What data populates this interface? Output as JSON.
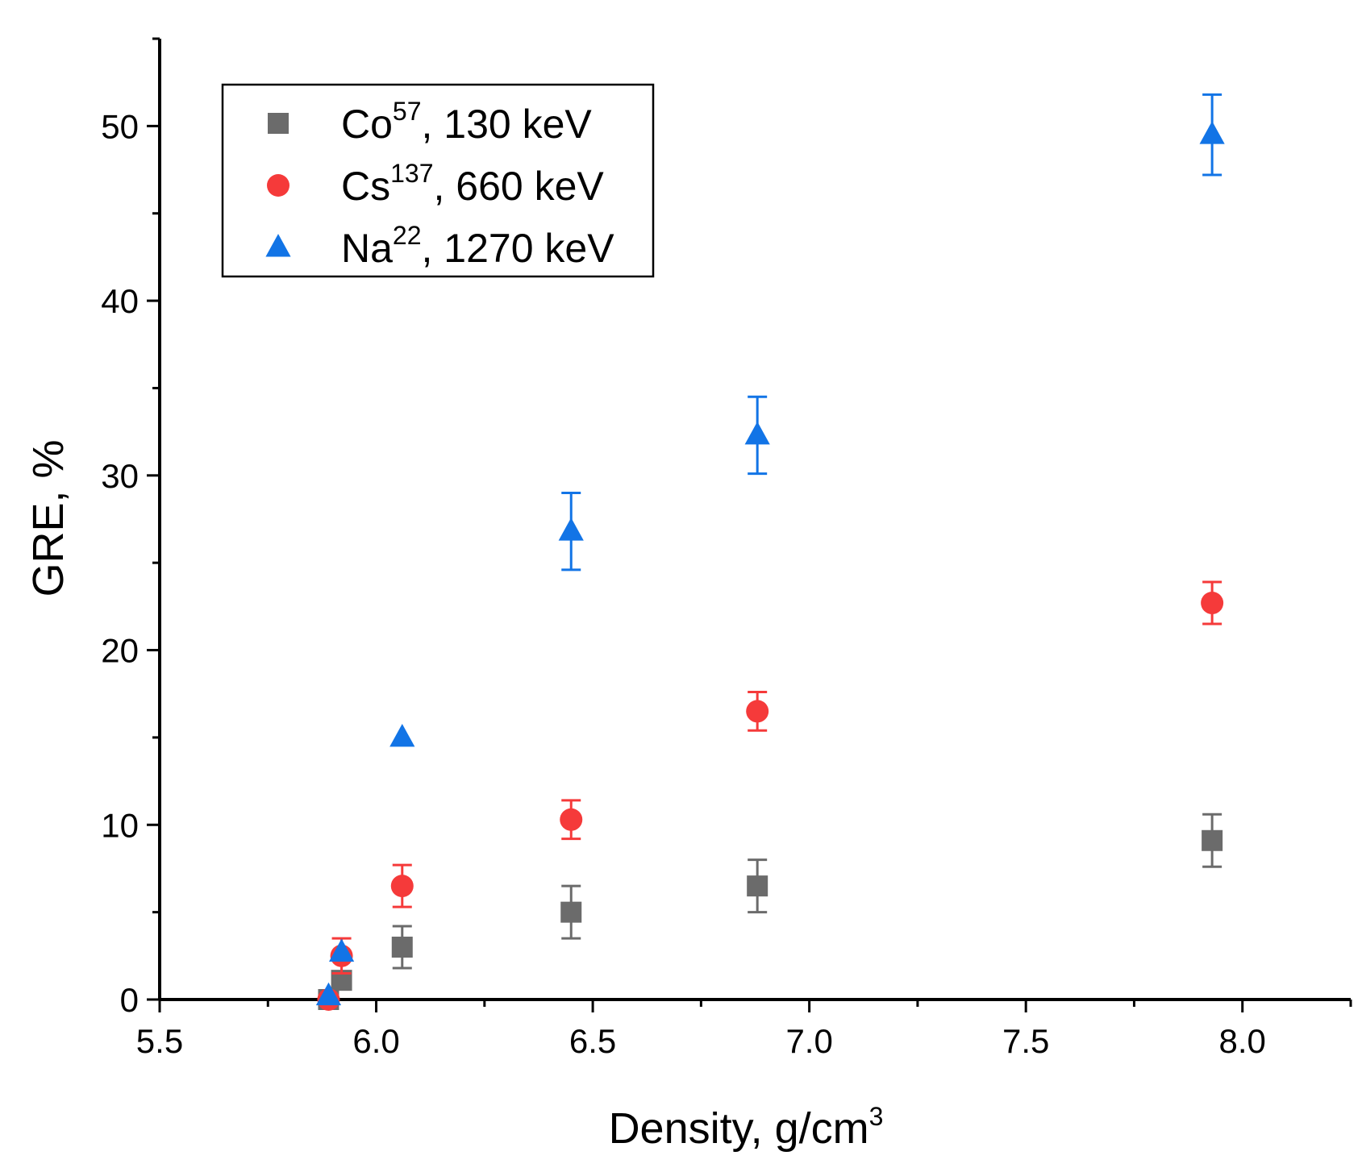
{
  "chart_data": {
    "type": "scatter",
    "xlabel": "Density, g/cm",
    "xlabel_sup": "3",
    "ylabel": "GRE, %",
    "xlim": [
      5.5,
      8.25
    ],
    "ylim": [
      0,
      55
    ],
    "x_ticks": [
      "5.5",
      "6.0",
      "6.5",
      "7.0",
      "7.5",
      "8.0"
    ],
    "y_ticks": [
      "0",
      "10",
      "20",
      "30",
      "40",
      "50"
    ],
    "grid": false,
    "legend_position": "top-left",
    "series": [
      {
        "name": "Co",
        "name_sup": "57",
        "name_suffix": ", 130 keV",
        "marker": "square",
        "color": "#6b6b6b",
        "points": [
          {
            "x": 5.89,
            "y": 0.0,
            "err": 0
          },
          {
            "x": 5.92,
            "y": 1.1,
            "err": 0.4
          },
          {
            "x": 6.06,
            "y": 3.0,
            "err": 1.2
          },
          {
            "x": 6.45,
            "y": 5.0,
            "err": 1.5
          },
          {
            "x": 6.88,
            "y": 6.5,
            "err": 1.5
          },
          {
            "x": 7.93,
            "y": 9.1,
            "err": 1.5
          }
        ]
      },
      {
        "name": "Cs",
        "name_sup": "137",
        "name_suffix": ", 660 keV",
        "marker": "circle",
        "color": "#f53a3a",
        "points": [
          {
            "x": 5.89,
            "y": 0.0,
            "err": 0
          },
          {
            "x": 5.92,
            "y": 2.5,
            "err": 1.0
          },
          {
            "x": 6.06,
            "y": 6.5,
            "err": 1.2
          },
          {
            "x": 6.45,
            "y": 10.3,
            "err": 1.1
          },
          {
            "x": 6.88,
            "y": 16.5,
            "err": 1.1
          },
          {
            "x": 7.93,
            "y": 22.7,
            "err": 1.2
          }
        ]
      },
      {
        "name": "Na",
        "name_sup": "22",
        "name_suffix": ", 1270 keV",
        "marker": "triangle",
        "color": "#1274e6",
        "points": [
          {
            "x": 5.89,
            "y": 0.2,
            "err": 0
          },
          {
            "x": 5.92,
            "y": 2.7,
            "err": 0
          },
          {
            "x": 6.06,
            "y": 15.0,
            "err": 0
          },
          {
            "x": 6.45,
            "y": 26.8,
            "err": 2.2
          },
          {
            "x": 6.88,
            "y": 32.3,
            "err": 2.2
          },
          {
            "x": 7.93,
            "y": 49.5,
            "err": 2.3
          }
        ]
      }
    ]
  }
}
